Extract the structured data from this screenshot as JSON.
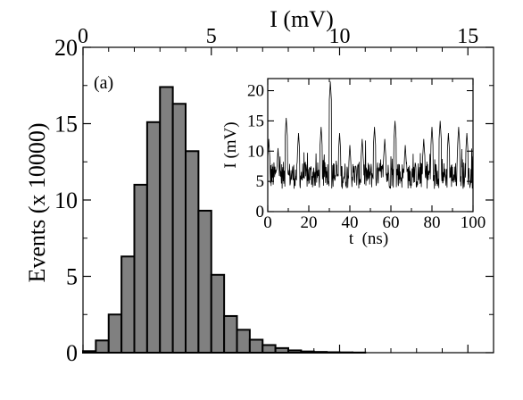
{
  "chart_data": [
    {
      "type": "bar",
      "panel_label": "(a)",
      "xlabel": "I (mV)",
      "ylabel": "Events (x 10000)",
      "xlim": [
        0,
        16
      ],
      "ylim": [
        0,
        20
      ],
      "x_ticks": [
        0,
        5,
        10,
        15
      ],
      "y_ticks": [
        0,
        5,
        10,
        15,
        20
      ],
      "x_tick_labels": [
        "0",
        "5",
        "10",
        "15"
      ],
      "y_tick_labels": [
        "0",
        "5",
        "10",
        "15",
        "20"
      ],
      "bin_width": 0.5,
      "bin_starts": [
        0,
        0.5,
        1,
        1.5,
        2,
        2.5,
        3,
        3.5,
        4,
        4.5,
        5,
        5.5,
        6,
        6.5,
        7,
        7.5,
        8,
        8.5,
        9,
        9.5,
        10,
        10.5
      ],
      "values": [
        0.1,
        0.8,
        2.5,
        6.3,
        11.0,
        15.1,
        17.4,
        16.3,
        13.2,
        9.3,
        5.1,
        2.4,
        1.5,
        0.85,
        0.5,
        0.3,
        0.15,
        0.08,
        0.05,
        0.03,
        0.02,
        0.01
      ],
      "fill_color": "#808080",
      "grid": false
    },
    {
      "type": "line",
      "inset": true,
      "xlabel": "t  (ns)",
      "ylabel": "I (mV)",
      "xlim": [
        0,
        100
      ],
      "ylim": [
        0,
        22
      ],
      "x_ticks": [
        0,
        20,
        40,
        60,
        80,
        100
      ],
      "y_ticks": [
        0,
        5,
        10,
        15,
        20
      ],
      "x_tick_labels": [
        "0",
        "20",
        "40",
        "60",
        "80",
        "100"
      ],
      "y_tick_labels": [
        "0",
        "5",
        "10",
        "15",
        "20"
      ],
      "x_spikes": [
        0.5,
        5,
        9,
        15,
        20.5,
        26,
        30.5,
        35,
        40,
        46,
        52,
        57,
        62,
        67,
        72,
        76,
        80,
        84,
        88,
        93,
        97
      ],
      "y_spikes": [
        12,
        10.5,
        15.5,
        13,
        2,
        14,
        21.5,
        13,
        11,
        12,
        14,
        12,
        15,
        11,
        3,
        12,
        14,
        15,
        13,
        14,
        13
      ],
      "baseline_level": 6,
      "line_color": "#000000",
      "grid": false
    }
  ]
}
